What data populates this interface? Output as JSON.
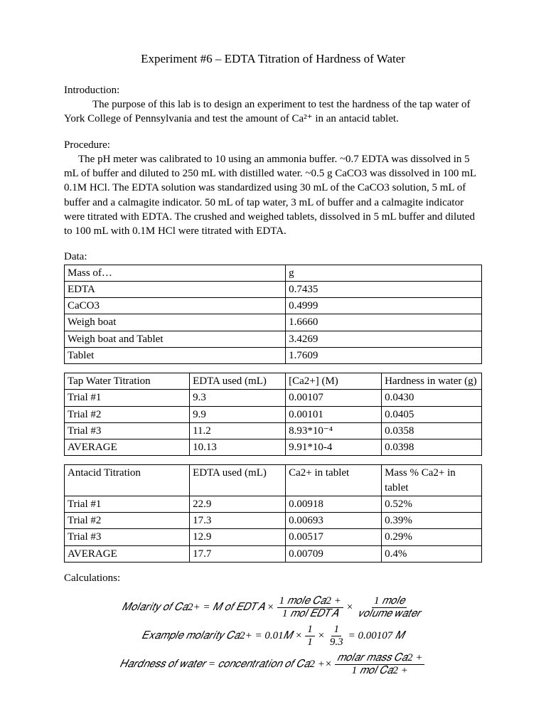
{
  "title": "Experiment #6 – EDTA Titration of Hardness of Water",
  "intro_label": "Introduction:",
  "intro_text": "The purpose of this lab is to design an experiment to test the hardness of the tap water of York College of Pennsylvania and test the amount of Ca²⁺ in an antacid tablet.",
  "proc_label": "Procedure:",
  "proc_text": "The pH meter was calibrated to 10 using an ammonia buffer. ~0.7 EDTA was dissolved in 5 mL of buffer and diluted to 250 mL with distilled water. ~0.5 g CaCO3 was dissolved in 100 mL 0.1M HCl. The EDTA solution was standardized using 30 mL of the CaCO3 solution, 5 mL of buffer and a calmagite indicator. 50 mL of tap water, 3 mL of buffer and a calmagite indicator were titrated with EDTA. The crushed and weighed tablets, dissolved in 5 mL buffer and diluted to 100 mL with 0.1M HCl were titrated with EDTA.",
  "data_label": "Data:",
  "mass_table": {
    "col_widths": [
      "53%",
      "47%"
    ],
    "rows": [
      [
        "Mass of…",
        "g"
      ],
      [
        " EDTA",
        " 0.7435"
      ],
      [
        "CaCO3",
        "0.4999"
      ],
      [
        "Weigh boat",
        "1.6660"
      ],
      [
        "Weigh boat and Tablet",
        "3.4269"
      ],
      [
        "Tablet",
        "1.7609"
      ]
    ]
  },
  "tap_table": {
    "col_widths": [
      "30%",
      "23%",
      "23%",
      "24%"
    ],
    "rows": [
      [
        "Tap Water Titration",
        "EDTA used (mL)",
        "[Ca2+] (M)",
        "Hardness in water (g)"
      ],
      [
        "Trial #1",
        "9.3",
        "0.00107",
        "0.0430"
      ],
      [
        "Trial #2",
        "9.9",
        "0.00101",
        "0.0405"
      ],
      [
        "Trial #3",
        "11.2",
        "8.93*10⁻⁴",
        "0.0358"
      ],
      [
        "AVERAGE",
        "10.13",
        "9.91*10-4",
        "0.0398"
      ]
    ]
  },
  "antacid_table": {
    "col_widths": [
      "30%",
      "23%",
      "23%",
      "24%"
    ],
    "rows": [
      [
        "Antacid Titration",
        "EDTA used (mL)",
        "Ca2+ in tablet",
        "Mass % Ca2+ in tablet"
      ],
      [
        "Trial #1",
        "22.9",
        "0.00918",
        "0.52%"
      ],
      [
        "Trial #2",
        "17.3",
        "0.00693",
        "0.39%"
      ],
      [
        "Trial #3",
        "12.9",
        "0.00517",
        "0.29%"
      ],
      [
        "AVERAGE",
        "17.7",
        "0.00709",
        "0.4%"
      ]
    ]
  },
  "calc_label": "Calculations:",
  "equations": {
    "eq1_left": "𝑀𝑜𝑙𝑎𝑟𝑖𝑡𝑦 𝑜𝑓 𝐶𝑎2+ = 𝑀 𝑜𝑓 𝐸𝐷𝑇𝐴 ×",
    "eq1_f1_num": "1 𝑚𝑜𝑙𝑒 𝐶𝑎2 +",
    "eq1_f1_den": "1 𝑚𝑜𝑙 𝐸𝐷𝑇𝐴",
    "eq1_mid": "×",
    "eq1_f2_num": "1 𝑚𝑜𝑙𝑒",
    "eq1_f2_den": "𝑣𝑜𝑙𝑢𝑚𝑒 𝑤𝑎𝑡𝑒𝑟",
    "eq2_left": "𝐸𝑥𝑎𝑚𝑝𝑙𝑒 𝑚𝑜𝑙𝑎𝑟𝑖𝑡𝑦 𝐶𝑎2+ = 0.01𝑀  ×",
    "eq2_f1_num": "1",
    "eq2_f1_den": "1",
    "eq2_mid": "×",
    "eq2_f2_num": "1",
    "eq2_f2_den": "9.3",
    "eq2_right": "= 0.00107 𝑀",
    "eq3_left": "𝐻𝑎𝑟𝑑𝑛𝑒𝑠𝑠 𝑜𝑓 𝑤𝑎𝑡𝑒𝑟 = 𝑐𝑜𝑛𝑐𝑒𝑛𝑡𝑟𝑎𝑡𝑖𝑜𝑛 𝑜𝑓 𝐶𝑎2 +×",
    "eq3_f_num": "𝑚𝑜𝑙𝑎𝑟 𝑚𝑎𝑠𝑠 𝐶𝑎2 +",
    "eq3_f_den": "1 𝑚𝑜𝑙 𝐶𝑎2 +"
  }
}
